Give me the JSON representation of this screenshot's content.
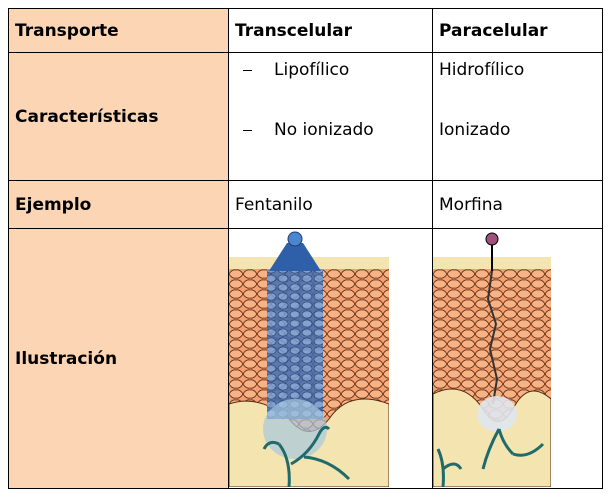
{
  "table": {
    "header": [
      "Transporte",
      "Transcelular",
      "Paracelular"
    ],
    "rows": [
      {
        "label": "Características",
        "transcelular": [
          "Lipofílico",
          "No ionizado"
        ],
        "paracelular": [
          "Hidrofílico",
          "Ionizado"
        ]
      },
      {
        "label": "Ejemplo",
        "transcelular": "Fentanilo",
        "paracelular": "Morfina"
      },
      {
        "label": "Ilustración"
      }
    ]
  }
}
